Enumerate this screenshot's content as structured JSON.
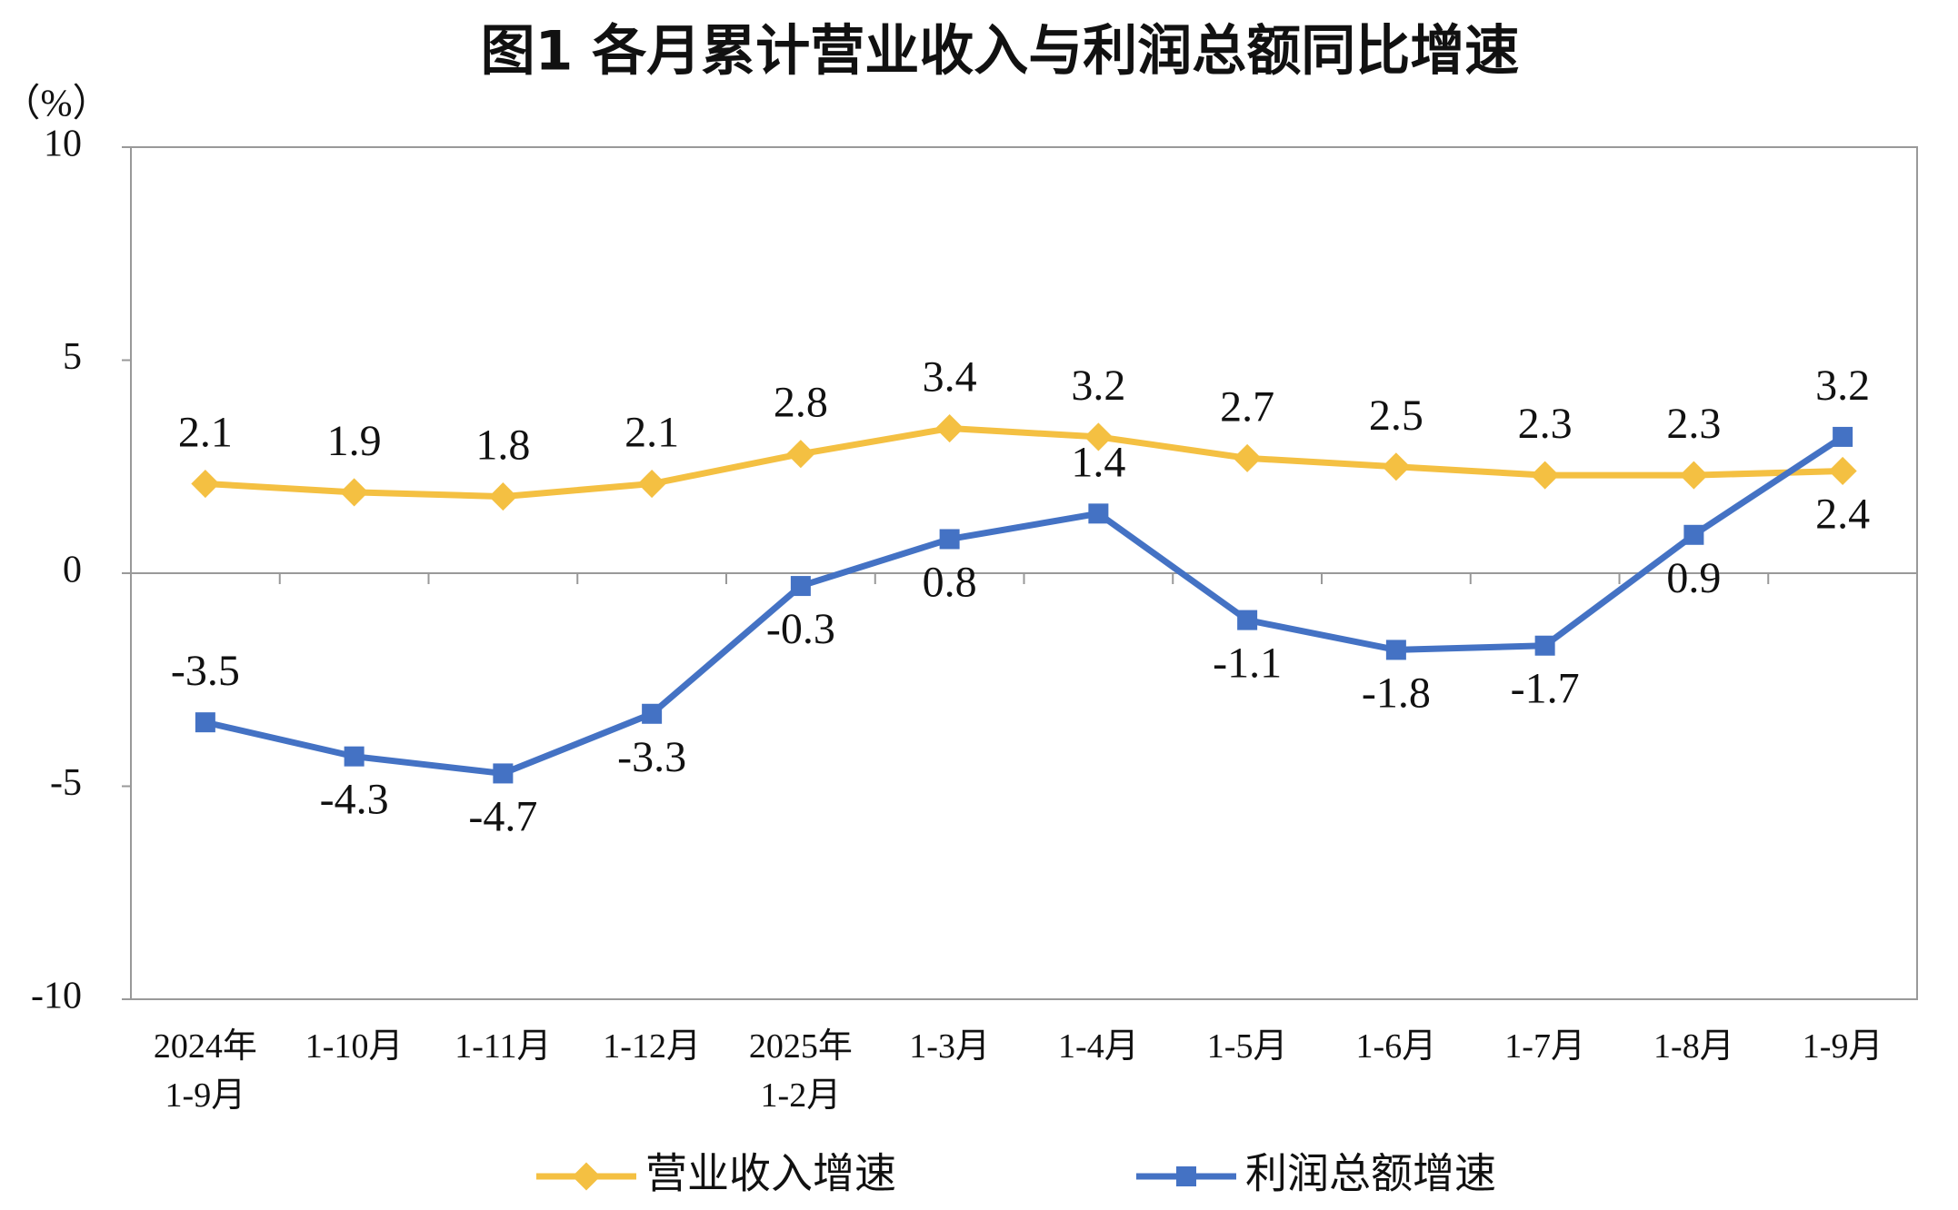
{
  "chart_data": {
    "type": "line",
    "title": "图1  各月累计营业收入与利润总额同比增速",
    "y_label": "（%）",
    "categories": [
      "2024年\n1-9月",
      "1-10月",
      "1-11月",
      "1-12月",
      "2025年\n1-2月",
      "1-3月",
      "1-4月",
      "1-5月",
      "1-6月",
      "1-7月",
      "1-8月",
      "1-9月"
    ],
    "series": [
      {
        "name": "营业收入增速",
        "color": "#f4c042",
        "values": [
          2.1,
          1.9,
          1.8,
          2.1,
          2.8,
          3.4,
          3.2,
          2.7,
          2.5,
          2.3,
          2.3,
          2.4
        ]
      },
      {
        "name": "利润总额增速",
        "color": "#4472c4",
        "values": [
          -3.5,
          -4.3,
          -4.7,
          -3.3,
          -0.3,
          0.8,
          1.4,
          -1.1,
          -1.8,
          -1.7,
          0.9,
          3.2
        ]
      }
    ],
    "ylim": [
      -10,
      10
    ],
    "yticks": [
      -10,
      -5,
      0,
      5,
      10
    ],
    "grid": false,
    "legend": "bottom"
  }
}
